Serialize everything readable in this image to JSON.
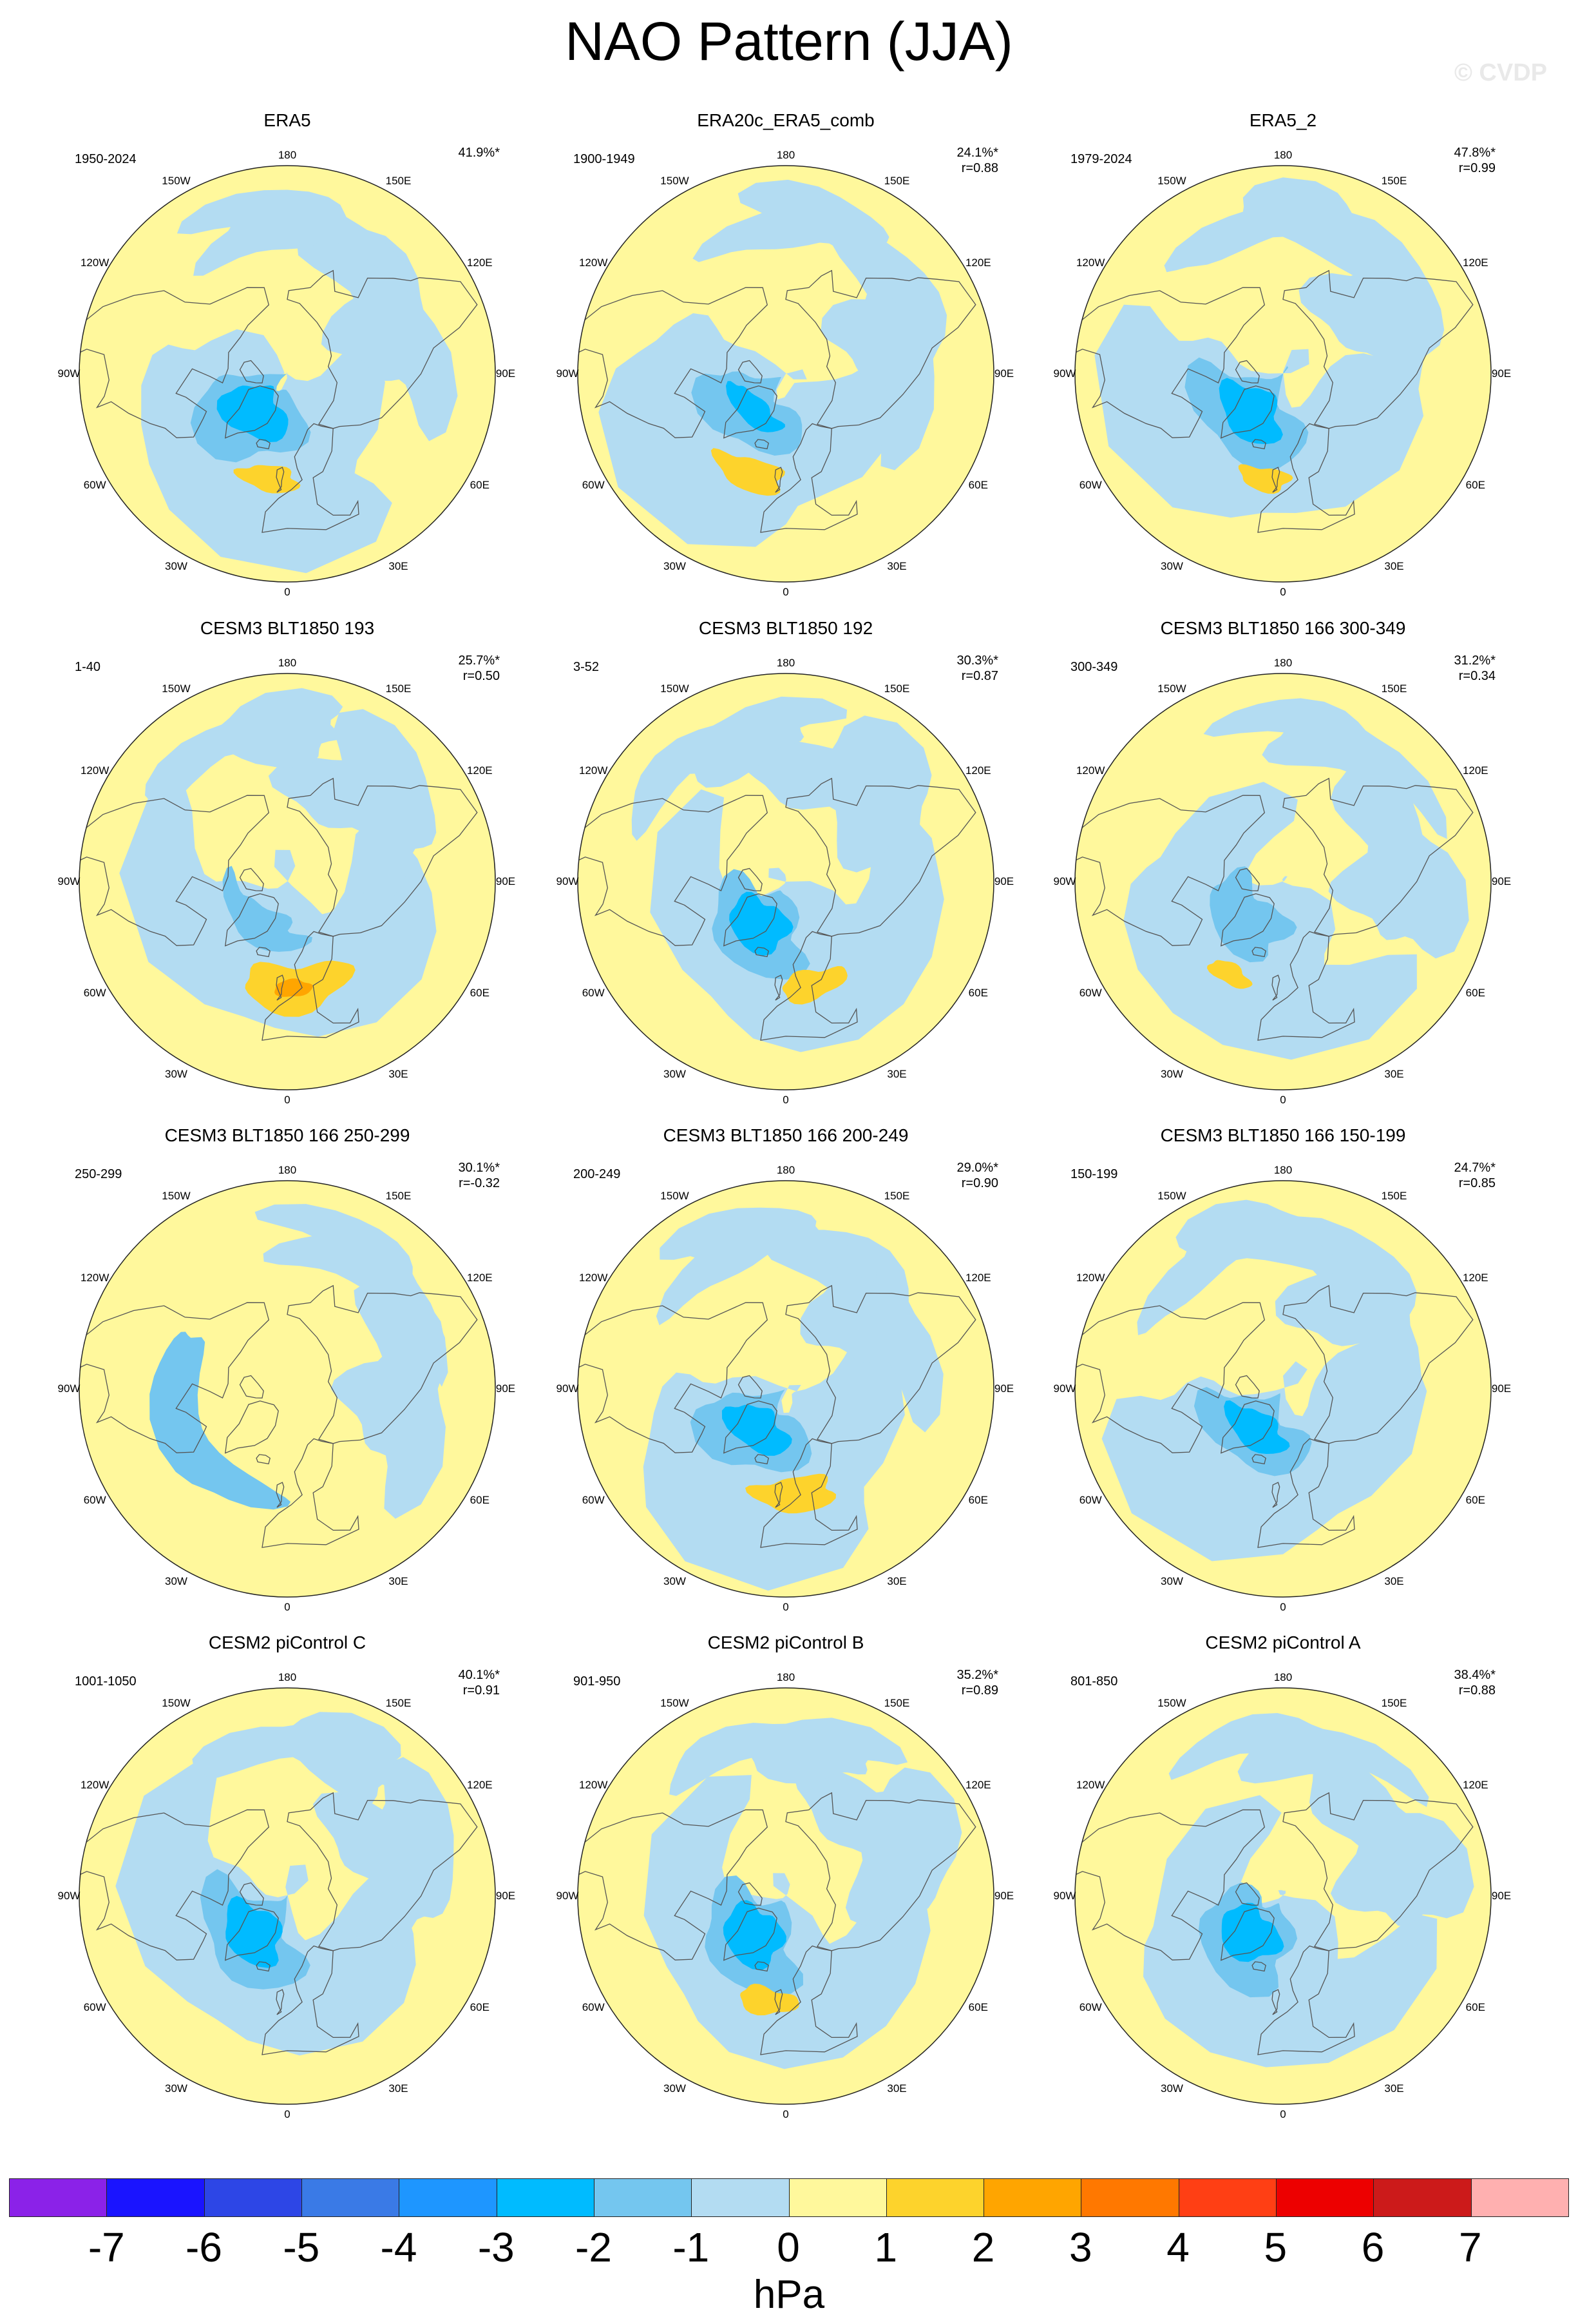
{
  "title": "NAO Pattern (JJA)",
  "watermark": "© CVDP",
  "lon_labels": [
    "180",
    "150E",
    "120E",
    "90E",
    "60E",
    "30E",
    "0",
    "30W",
    "60W",
    "90W",
    "120W",
    "150W"
  ],
  "colors": {
    "neg1": "#b3dcf2",
    "neg2": "#74c6ef",
    "neg3": "#00bbff",
    "pos1": "#fff89c",
    "pos2": "#fdd32c",
    "pos3": "#ffa500",
    "coast": "#555555"
  },
  "panels": [
    {
      "title": "ERA5",
      "period": "1950-2024",
      "pct": "41.9%*",
      "r": "",
      "pattern": {
        "center": 1.0,
        "core": 1.0,
        "pos": 0.5,
        "lonshift": 0
      }
    },
    {
      "title": "ERA20c_ERA5_comb",
      "period": "1900-1949",
      "pct": "24.1%*",
      "r": "r=0.88",
      "pattern": {
        "center": 0.8,
        "core": 0.5,
        "pos": 0.7,
        "lonshift": -10
      }
    },
    {
      "title": "ERA5_2",
      "period": "1979-2024",
      "pct": "47.8%*",
      "r": "r=0.99",
      "pattern": {
        "center": 1.05,
        "core": 1.0,
        "pos": 0.4,
        "lonshift": 0
      }
    },
    {
      "title": "CESM3 BLT1850 193",
      "period": "1-40",
      "pct": "25.7%*",
      "r": "r=0.50",
      "pattern": {
        "center": 0.4,
        "core": 0.2,
        "pos": 1.2,
        "lonshift": 15
      }
    },
    {
      "title": "CESM3 BLT1850 192",
      "period": "3-52",
      "pct": "30.3%*",
      "r": "r=0.87",
      "pattern": {
        "center": 0.9,
        "core": 0.9,
        "pos": 0.6,
        "lonshift": 25
      }
    },
    {
      "title": "CESM3 BLT1850 166 300-349",
      "period": "300-349",
      "pct": "31.2%*",
      "r": "r=0.34",
      "pattern": {
        "center": 0.6,
        "core": 0.3,
        "pos": 0.3,
        "lonshift": -20
      }
    },
    {
      "title": "CESM3 BLT1850 166 250-299",
      "period": "250-299",
      "pct": "30.1%*",
      "r": "r=-0.32",
      "pattern": {
        "center": -0.4,
        "core": 0.2,
        "pos": 0.0,
        "lonshift": -30
      }
    },
    {
      "title": "CESM3 BLT1850 166 200-249",
      "period": "200-249",
      "pct": "29.0%*",
      "r": "r=0.90",
      "pattern": {
        "center": 0.9,
        "core": 0.8,
        "pos": 0.8,
        "lonshift": 15
      }
    },
    {
      "title": "CESM3 BLT1850 166 150-199",
      "period": "150-199",
      "pct": "24.7%*",
      "r": "r=0.85",
      "pattern": {
        "center": 0.8,
        "core": 0.7,
        "pos": 0.0,
        "lonshift": 20
      }
    },
    {
      "title": "CESM2 piControl C",
      "period": "1001-1050",
      "pct": "40.1%*",
      "r": "r=0.91",
      "pattern": {
        "center": 1.0,
        "core": 1.0,
        "pos": 0.0,
        "lonshift": -10
      }
    },
    {
      "title": "CESM2 piControl B",
      "period": "901-950",
      "pct": "35.2%*",
      "r": "r=0.89",
      "pattern": {
        "center": 1.0,
        "core": 1.0,
        "pos": 0.5,
        "lonshift": 0
      }
    },
    {
      "title": "CESM2 piControl A",
      "period": "801-850",
      "pct": "38.4%*",
      "r": "r=0.88",
      "pattern": {
        "center": 0.95,
        "core": 0.9,
        "pos": 0.0,
        "lonshift": -5
      }
    }
  ],
  "colorbar": {
    "colors": [
      "#8b22e8",
      "#1a14ff",
      "#2d46e6",
      "#3a7ae6",
      "#1e96ff",
      "#00bbff",
      "#74c6ef",
      "#b3dcf2",
      "#fff89c",
      "#fdd32c",
      "#ffa500",
      "#ff7800",
      "#ff3f14",
      "#ed0000",
      "#cc1a1a",
      "#ffb0b0"
    ],
    "ticks": [
      "-7",
      "-6",
      "-5",
      "-4",
      "-3",
      "-2",
      "-1",
      "0",
      "1",
      "2",
      "3",
      "4",
      "5",
      "6",
      "7"
    ],
    "units": "hPa"
  }
}
